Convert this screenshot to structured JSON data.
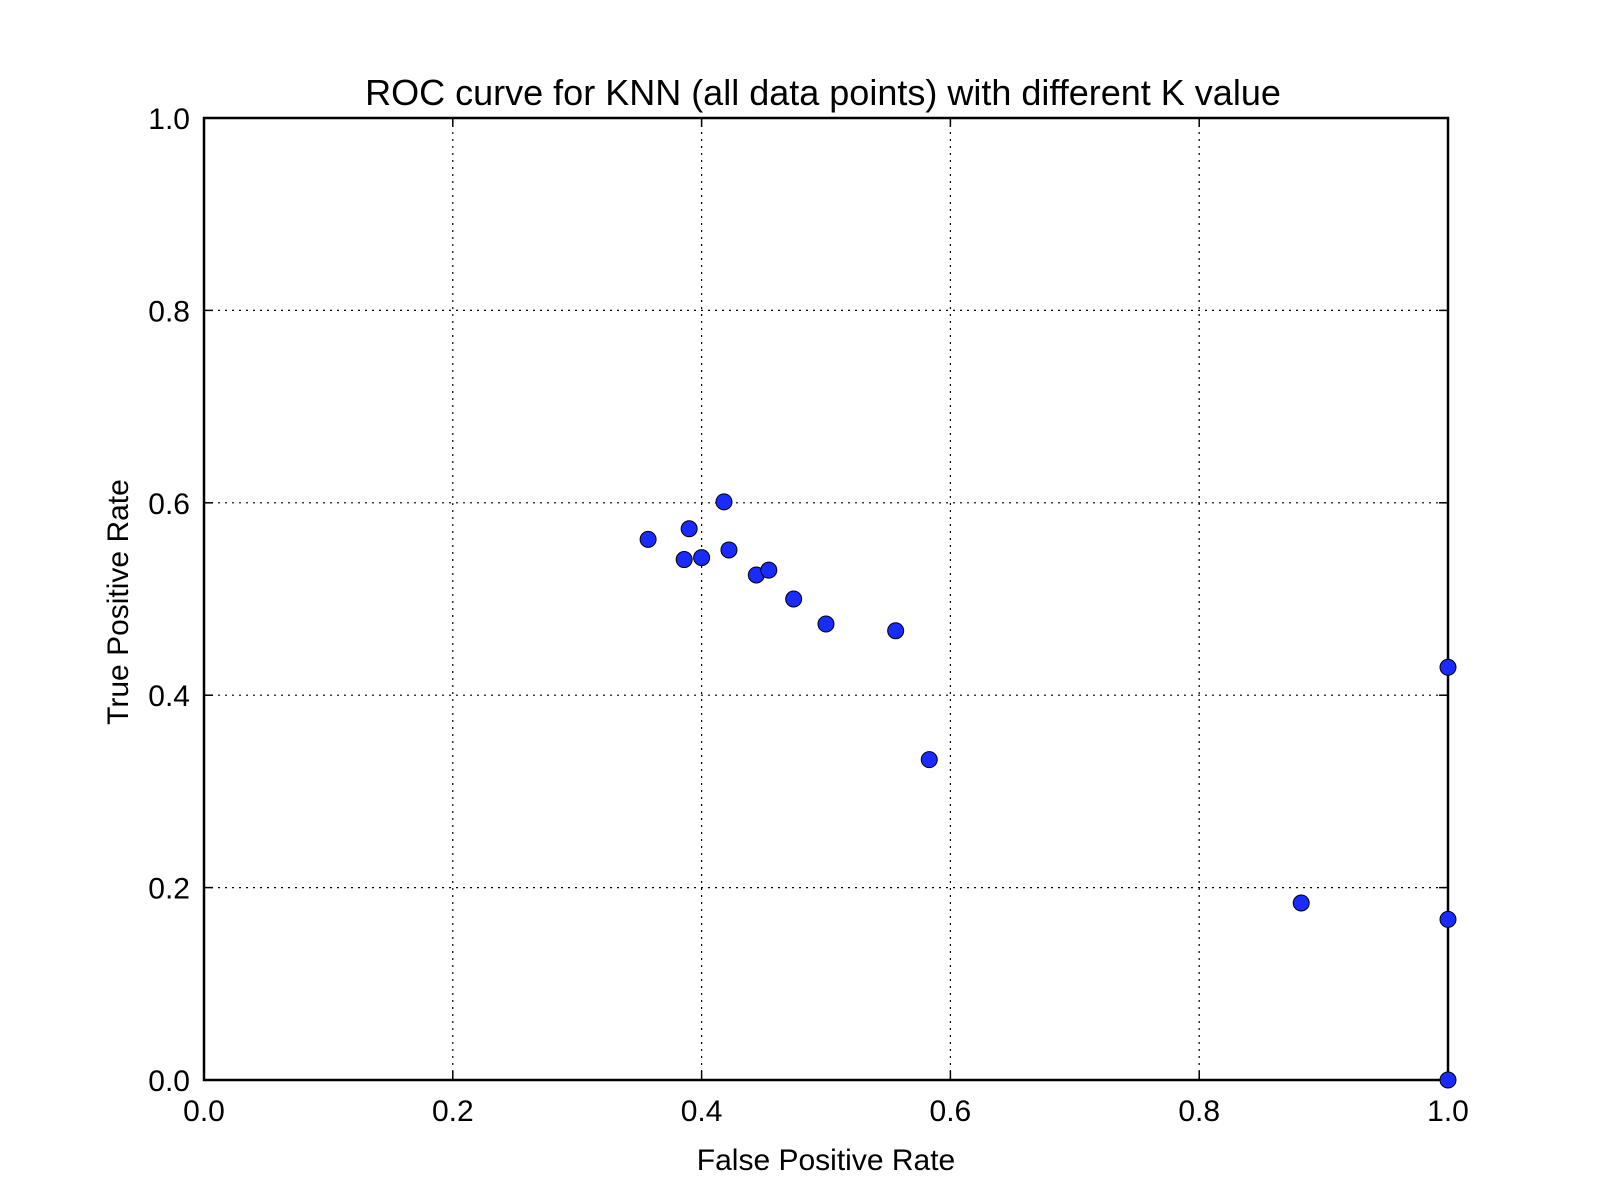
{
  "chart_data": {
    "type": "scatter",
    "title": "ROC curve for KNN (all data points) with different K value",
    "xlabel": "False Positive Rate",
    "ylabel": "True Positive Rate",
    "xlim": [
      0.0,
      1.0
    ],
    "ylim": [
      0.0,
      1.0
    ],
    "x_ticks": [
      "0.0",
      "0.2",
      "0.4",
      "0.6",
      "0.8",
      "1.0"
    ],
    "y_ticks": [
      "0.0",
      "0.2",
      "0.4",
      "0.6",
      "0.8",
      "1.0"
    ],
    "grid": true,
    "marker_color": "#1a2bff",
    "series": [
      {
        "x": [
          0.357,
          0.386,
          0.39,
          0.4,
          0.418,
          0.422,
          0.444,
          0.454,
          0.474,
          0.5,
          0.556,
          0.583,
          0.882,
          1.0,
          1.0,
          1.0
        ],
        "y": [
          0.562,
          0.541,
          0.573,
          0.543,
          0.601,
          0.551,
          0.525,
          0.53,
          0.5,
          0.474,
          0.467,
          0.333,
          0.184,
          0.429,
          0.167,
          0.0
        ]
      }
    ]
  }
}
